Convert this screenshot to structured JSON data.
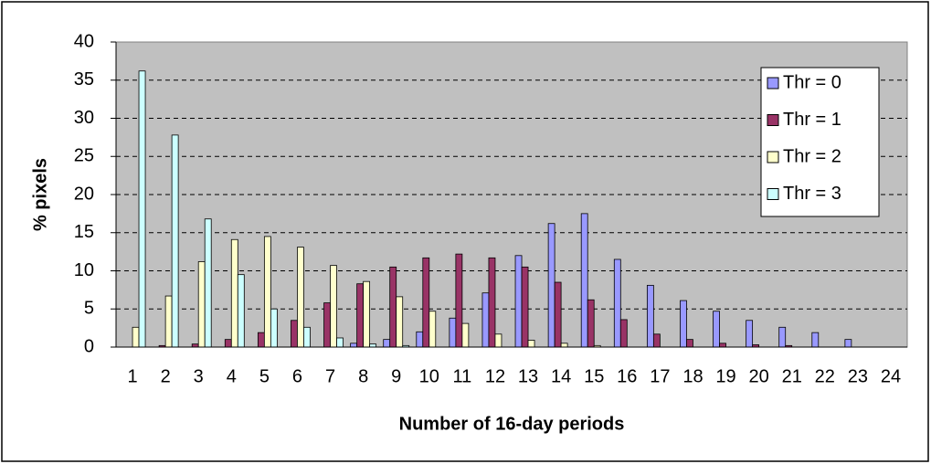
{
  "chart_data": {
    "type": "bar",
    "x_label": "Number of 16-day periods",
    "y_label": "% pixels",
    "categories": [
      1,
      2,
      3,
      4,
      5,
      6,
      7,
      8,
      9,
      10,
      11,
      12,
      13,
      14,
      15,
      16,
      17,
      18,
      19,
      20,
      21,
      22,
      23,
      24
    ],
    "series": [
      {
        "name": "Thr = 0",
        "color": "#9999ff",
        "values": [
          0,
          0,
          0,
          0,
          0,
          0,
          0,
          0.5,
          1,
          2,
          3.8,
          7.1,
          12,
          16.2,
          17.5,
          11.5,
          8.1,
          6.1,
          4.7,
          3.5,
          2.6,
          1.9,
          1,
          0
        ]
      },
      {
        "name": "Thr = 1",
        "color": "#993366",
        "values": [
          0,
          0.2,
          0.4,
          1,
          1.9,
          3.5,
          5.8,
          8.3,
          10.5,
          11.7,
          12.2,
          11.7,
          10.5,
          8.5,
          6.2,
          3.6,
          1.7,
          1,
          0.5,
          0.3,
          0.2,
          0,
          0,
          0
        ]
      },
      {
        "name": "Thr = 2",
        "color": "#ffffcc",
        "values": [
          2.6,
          6.7,
          11.2,
          14.1,
          14.5,
          13.1,
          10.7,
          8.6,
          6.6,
          4.7,
          3.1,
          1.7,
          0.9,
          0.5,
          0.2,
          0,
          0,
          0,
          0,
          0,
          0,
          0,
          0,
          0
        ]
      },
      {
        "name": "Thr = 3",
        "color": "#ccffff",
        "values": [
          36.2,
          27.8,
          16.8,
          9.5,
          5,
          2.6,
          1.2,
          0.4,
          0.2,
          0,
          0,
          0,
          0,
          0,
          0,
          0,
          0,
          0,
          0,
          0,
          0,
          0,
          0,
          0
        ]
      }
    ],
    "ylim": [
      0,
      40
    ],
    "yticks": [
      0,
      5,
      10,
      15,
      20,
      25,
      30,
      35,
      40
    ],
    "grid": true,
    "legend": "upper right"
  }
}
